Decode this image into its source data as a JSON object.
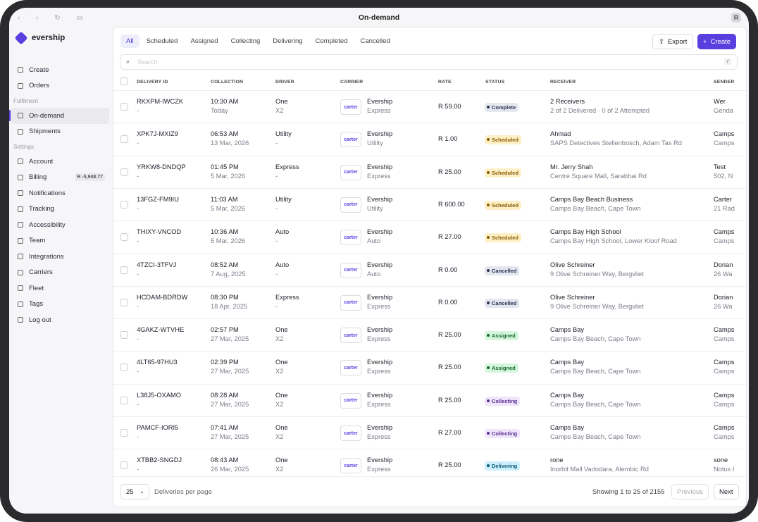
{
  "browser": {
    "title": "On-demand",
    "avatar": "R"
  },
  "sidebar": {
    "brand": "evership",
    "main": [
      {
        "label": "Create"
      },
      {
        "label": "Orders"
      }
    ],
    "fulfilment": {
      "title": "Fulfilment",
      "items": [
        {
          "label": "On-demand",
          "active": true
        },
        {
          "label": "Shipments"
        }
      ]
    },
    "settings": {
      "title": "Settings",
      "items": [
        {
          "label": "Account"
        },
        {
          "label": "Billing",
          "badge": "R -5,948.77"
        },
        {
          "label": "Notifications"
        },
        {
          "label": "Tracking"
        },
        {
          "label": "Accessibility"
        },
        {
          "label": "Team"
        },
        {
          "label": "Integrations"
        },
        {
          "label": "Carriers"
        },
        {
          "label": "Fleet"
        },
        {
          "label": "Tags"
        },
        {
          "label": "Log out"
        }
      ]
    }
  },
  "toolbar": {
    "tabs": [
      {
        "label": "All",
        "active": true
      },
      {
        "label": "Scheduled"
      },
      {
        "label": "Assigned"
      },
      {
        "label": "Collecting"
      },
      {
        "label": "Delivering"
      },
      {
        "label": "Completed"
      },
      {
        "label": "Cancelled"
      }
    ],
    "export": "Export",
    "create": "Create",
    "search_placeholder": "Search",
    "shortcut": "/"
  },
  "table": {
    "headers": [
      "DELIVERY ID",
      "COLLECTION",
      "DRIVER",
      "CARRIER",
      "RATE",
      "STATUS",
      "RECEIVER",
      "SENDER"
    ],
    "rows": [
      {
        "id": "RKXPM-IWCZK",
        "id_sub": "-",
        "time": "10:30 AM",
        "date": "Today",
        "driver": "One",
        "driver_sub": "X2",
        "logo": "carter",
        "carrier": "Evership",
        "service": "Express",
        "rate": "R 59.00",
        "status": {
          "label": "Complete",
          "bg": "#e6e8f0",
          "fg": "#2d3452"
        },
        "receiver": "2 Receivers",
        "receiver_sub": "2 of 2 Delivered · 0 of 2 Attempted",
        "sender": "Wer",
        "sender_sub": "Genda"
      },
      {
        "id": "XPK7J-MXIZ9",
        "id_sub": "-",
        "time": "06:53 AM",
        "date": "13 Mar, 2026",
        "driver": "Utility",
        "driver_sub": "-",
        "logo": "carter",
        "carrier": "Evership",
        "service": "Utility",
        "rate": "R 1.00",
        "status": {
          "label": "Scheduled",
          "bg": "#fdf0c6",
          "fg": "#8a5a00"
        },
        "receiver": "Ahmad",
        "receiver_sub": "SAPS Detectives Stellenbosch, Adam Tas Rd",
        "sender": "Camps",
        "sender_sub": "Camps"
      },
      {
        "id": "YRKW8-DNDQP",
        "id_sub": "-",
        "time": "01:45 PM",
        "date": "5 Mar, 2026",
        "driver": "Express",
        "driver_sub": "-",
        "logo": "carter",
        "carrier": "Evership",
        "service": "Express",
        "rate": "R 25.00",
        "status": {
          "label": "Scheduled",
          "bg": "#fdf0c6",
          "fg": "#8a5a00"
        },
        "receiver": "Mr. Jerry Shah",
        "receiver_sub": "Centre Square Mall, Sarabhai Rd",
        "sender": "Test",
        "sender_sub": "502, N"
      },
      {
        "id": "13FGZ-FM9IU",
        "id_sub": "-",
        "time": "11:03 AM",
        "date": "5 Mar, 2026",
        "driver": "Utility",
        "driver_sub": "-",
        "logo": "carter",
        "carrier": "Evership",
        "service": "Utility",
        "rate": "R 600.00",
        "status": {
          "label": "Scheduled",
          "bg": "#fdf0c6",
          "fg": "#8a5a00"
        },
        "receiver": "Camps Bay Beach Business",
        "receiver_sub": "Camps Bay Beach, Cape Town",
        "sender": "Carter",
        "sender_sub": "21 Rad"
      },
      {
        "id": "THIXY-VNCOD",
        "id_sub": "-",
        "time": "10:36 AM",
        "date": "5 Mar, 2026",
        "driver": "Auto",
        "driver_sub": "-",
        "logo": "carter",
        "carrier": "Evership",
        "service": "Auto",
        "rate": "R 27.00",
        "status": {
          "label": "Scheduled",
          "bg": "#fdf0c6",
          "fg": "#8a5a00"
        },
        "receiver": "Camps Bay High School",
        "receiver_sub": "Camps Bay High School, Lower Kloof Road",
        "sender": "Camps",
        "sender_sub": "Camps"
      },
      {
        "id": "4TZCI-3TFVJ",
        "id_sub": "-",
        "time": "08:52 AM",
        "date": "7 Aug, 2025",
        "driver": "Auto",
        "driver_sub": "-",
        "logo": "carter",
        "carrier": "Evership",
        "service": "Auto",
        "rate": "R 0.00",
        "status": {
          "label": "Cancelled",
          "bg": "#e3e5ef",
          "fg": "#2d3452"
        },
        "receiver": "Olive Schreiner",
        "receiver_sub": "9 Olive Schreiner Way, Bergvliet",
        "sender": "Dorian",
        "sender_sub": "26 Wa"
      },
      {
        "id": "HCDAM-BDRDW",
        "id_sub": "-",
        "time": "08:30 PM",
        "date": "18 Apr, 2025",
        "driver": "Express",
        "driver_sub": "-",
        "logo": "carter",
        "carrier": "Evership",
        "service": "Express",
        "rate": "R 0.00",
        "status": {
          "label": "Cancelled",
          "bg": "#e3e5ef",
          "fg": "#2d3452"
        },
        "receiver": "Olive Schreiner",
        "receiver_sub": "9 Olive Schreiner Way, Bergvliet",
        "sender": "Dorian",
        "sender_sub": "26 Wa"
      },
      {
        "id": "4GAKZ-WTVHE",
        "id_sub": "-",
        "time": "02:57 PM",
        "date": "27 Mar, 2025",
        "driver": "One",
        "driver_sub": "X2",
        "logo": "carter",
        "carrier": "Evership",
        "service": "Express",
        "rate": "R 25.00",
        "status": {
          "label": "Assigned",
          "bg": "#d5f5dc",
          "fg": "#17692e"
        },
        "receiver": "Camps Bay",
        "receiver_sub": "Camps Bay Beach, Cape Town",
        "sender": "Camps",
        "sender_sub": "Camps"
      },
      {
        "id": "4LT65-97HU3",
        "id_sub": "-",
        "time": "02:39 PM",
        "date": "27 Mar, 2025",
        "driver": "One",
        "driver_sub": "X2",
        "logo": "carter",
        "carrier": "Evership",
        "service": "Express",
        "rate": "R 25.00",
        "status": {
          "label": "Assigned",
          "bg": "#d5f5dc",
          "fg": "#17692e"
        },
        "receiver": "Camps Bay",
        "receiver_sub": "Camps Bay Beach, Cape Town",
        "sender": "Camps",
        "sender_sub": "Camps"
      },
      {
        "id": "L38J5-OXAMO",
        "id_sub": "-",
        "time": "08:28 AM",
        "date": "27 Mar, 2025",
        "driver": "One",
        "driver_sub": "X2",
        "logo": "carter",
        "carrier": "Evership",
        "service": "Express",
        "rate": "R 25.00",
        "status": {
          "label": "Collecting",
          "bg": "#efe6fb",
          "fg": "#5a2f91"
        },
        "receiver": "Camps Bay",
        "receiver_sub": "Camps Bay Beach, Cape Town",
        "sender": "Camps",
        "sender_sub": "Camps"
      },
      {
        "id": "PAMCF-IORI5",
        "id_sub": "-",
        "time": "07:41 AM",
        "date": "27 Mar, 2025",
        "driver": "One",
        "driver_sub": "X2",
        "logo": "carter",
        "carrier": "Evership",
        "service": "Express",
        "rate": "R 27.00",
        "status": {
          "label": "Collecting",
          "bg": "#efe6fb",
          "fg": "#5a2f91"
        },
        "receiver": "Camps Bay",
        "receiver_sub": "Camps Bay Beach, Cape Town",
        "sender": "Camps",
        "sender_sub": "Camps"
      },
      {
        "id": "XTBB2-SNGDJ",
        "id_sub": "-",
        "time": "08:43 AM",
        "date": "26 Mar, 2025",
        "driver": "One",
        "driver_sub": "X2",
        "logo": "carter",
        "carrier": "Evership",
        "service": "Express",
        "rate": "R 25.00",
        "status": {
          "label": "Delivering",
          "bg": "#cdeefb",
          "fg": "#0d5b78"
        },
        "receiver": "rone",
        "receiver_sub": "Inorbit Mall Vadodara, Alembic Rd",
        "sender": "sone",
        "sender_sub": "Notus I"
      }
    ]
  },
  "footer": {
    "per_page": "25",
    "per_page_label": "Deliveries per page",
    "summary": "Showing 1 to 25 of 2155",
    "previous": "Previous",
    "next": "Next"
  }
}
